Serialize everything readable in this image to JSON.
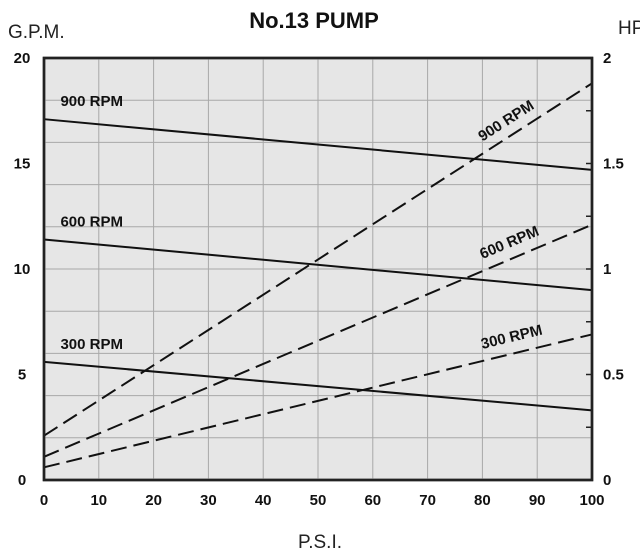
{
  "chart_data": {
    "type": "line",
    "title": "No.13 PUMP",
    "ylabel_left": "G.P.M.",
    "ylabel_right": "HP",
    "xlabel": "P.S.I.",
    "x_ticks": [
      "0",
      "10",
      "20",
      "30",
      "40",
      "50",
      "60",
      "70",
      "80",
      "90",
      "100"
    ],
    "y_left_ticks": [
      "0",
      "5",
      "10",
      "15",
      "20"
    ],
    "y_right_ticks": [
      "0",
      "0.5",
      "1",
      "1.5",
      "2"
    ],
    "xlim": [
      0,
      100
    ],
    "ylim_left": [
      0,
      20
    ],
    "ylim_right": [
      0,
      2
    ],
    "grid": true,
    "series": [
      {
        "name": "900 RPM",
        "axis": "left",
        "style": "solid",
        "x": [
          0,
          100
        ],
        "values": [
          17.1,
          14.7
        ]
      },
      {
        "name": "600 RPM",
        "axis": "left",
        "style": "solid",
        "x": [
          0,
          100
        ],
        "values": [
          11.4,
          9.0
        ]
      },
      {
        "name": "300 RPM",
        "axis": "left",
        "style": "solid",
        "x": [
          0,
          100
        ],
        "values": [
          5.6,
          3.3
        ]
      },
      {
        "name": "900 RPM",
        "axis": "right",
        "style": "dashed",
        "x": [
          0,
          100
        ],
        "values": [
          0.21,
          1.88
        ]
      },
      {
        "name": "600 RPM",
        "axis": "right",
        "style": "dashed",
        "x": [
          0,
          100
        ],
        "values": [
          0.11,
          1.21
        ]
      },
      {
        "name": "300 RPM",
        "axis": "right",
        "style": "dashed",
        "x": [
          0,
          100
        ],
        "values": [
          0.06,
          0.69
        ]
      }
    ]
  }
}
